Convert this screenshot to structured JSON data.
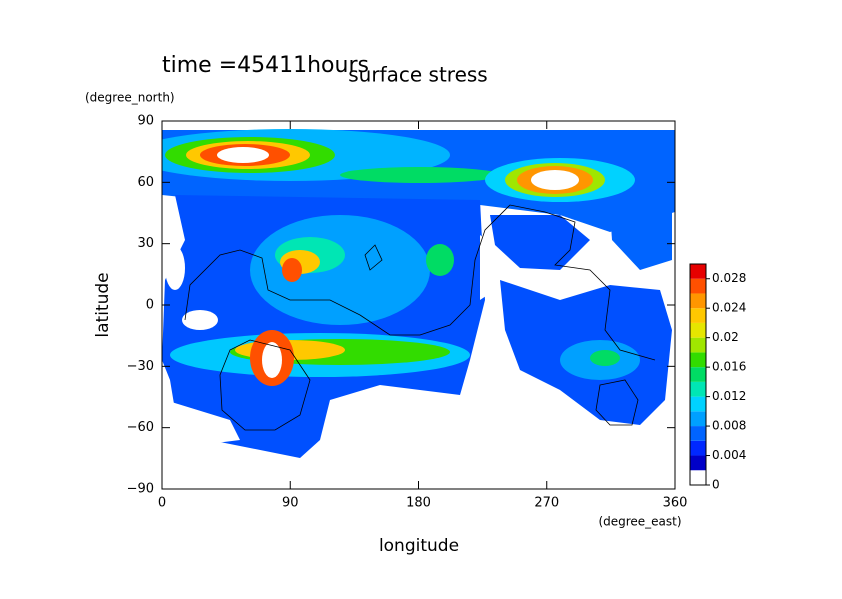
{
  "chart_data": {
    "type": "contour",
    "title": "surface stress",
    "subtitle": "time =45411hours",
    "x_label": "longitude",
    "x_units": "(degree_east)",
    "y_label": "latitude",
    "y_units": "(degree_north)",
    "xlim": [
      0,
      360
    ],
    "xticks": [
      0,
      90,
      180,
      270,
      360
    ],
    "ylim": [
      -90,
      90
    ],
    "yticks": [
      {
        "value": -90,
        "label": "−90"
      },
      {
        "value": -60,
        "label": "−60"
      },
      {
        "value": -30,
        "label": "−30"
      },
      0,
      30,
      60,
      90
    ],
    "colorbar_lim": [
      0,
      0.03
    ],
    "colorbar_ticks": [
      0,
      0.004,
      0.008,
      0.012,
      0.016,
      0.02,
      0.024,
      0.028
    ],
    "colorbar_colors": [
      "#ffffff",
      "#0000c8",
      "#0028ff",
      "#0064ff",
      "#00a0ff",
      "#00d2ff",
      "#00e6b4",
      "#00dc64",
      "#32dc00",
      "#a0e600",
      "#e6e600",
      "#ffc800",
      "#ff9600",
      "#ff5000",
      "#e60000"
    ]
  }
}
